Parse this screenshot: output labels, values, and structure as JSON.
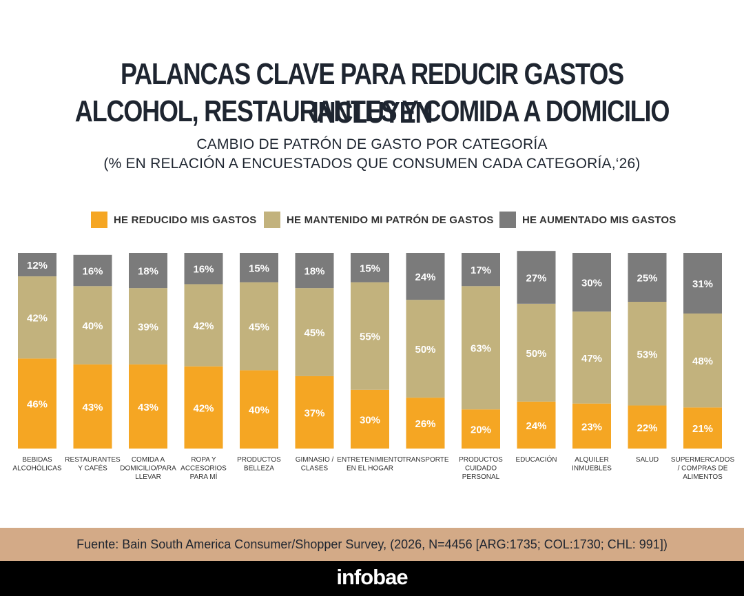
{
  "header": {
    "title_line1": "PALANCAS CLAVE PARA REDUCIR GASTOS INCLUYEN",
    "title_line2": "ALCOHOL, RESTAURANTES Y COMIDA A DOMICILIO",
    "subtitle_line1": "CAMBIO DE PATRÓN DE GASTO POR CATEGORÍA",
    "subtitle_line2": "(% EN RELACIÓN A ENCUESTADOS QUE CONSUMEN CADA CATEGORÍA,‘26)"
  },
  "colors": {
    "reducido": "#f5a623",
    "mantenido": "#c2b27d",
    "aumentado": "#7b7b7b",
    "label_text": "#ffffff",
    "footer_band": "#d3aa87",
    "brand_band": "#000000"
  },
  "chart_data": {
    "type": "bar",
    "stacked": true,
    "categories": [
      [
        "BEBIDAS",
        "ALCOHÓLICAS"
      ],
      [
        "RESTAURANTES",
        "Y CAFÉS"
      ],
      [
        "COMIDA A",
        "DOMICILIO/PARA",
        "LLEVAR"
      ],
      [
        "ROPA Y",
        "ACCESORIOS",
        "PARA MÍ"
      ],
      [
        "PRODUCTOS",
        "BELLEZA"
      ],
      [
        "GIMNASIO /",
        "CLASES"
      ],
      [
        "ENTRETENIMIENTO",
        "EN EL HOGAR"
      ],
      [
        "TRANSPORTE"
      ],
      [
        "PRODUCTOS",
        "CUIDADO",
        "PERSONAL"
      ],
      [
        "EDUCACIÓN"
      ],
      [
        "ALQUILER",
        "INMUEBLES"
      ],
      [
        "SALUD"
      ],
      [
        "SUPERMERCADOS",
        "/ COMPRAS DE",
        "ALIMENTOS"
      ]
    ],
    "series": [
      {
        "name": "HE REDUCIDO MIS GASTOS",
        "values": [
          46,
          43,
          43,
          42,
          40,
          37,
          30,
          26,
          20,
          24,
          23,
          22,
          21
        ]
      },
      {
        "name": "HE MANTENIDO MI PATRÓN DE GASTOS",
        "values": [
          42,
          40,
          39,
          42,
          45,
          45,
          55,
          50,
          63,
          50,
          47,
          53,
          48
        ]
      },
      {
        "name": "HE AUMENTADO MIS GASTOS",
        "values": [
          12,
          16,
          18,
          16,
          15,
          18,
          15,
          24,
          17,
          27,
          30,
          25,
          31
        ]
      }
    ],
    "value_suffix": "%",
    "legend_position": "top",
    "grid": false
  },
  "footer": {
    "source": "Fuente: Bain South America Consumer/Shopper Survey, (2026, N=4456 [ARG:1735; COL:1730; CHL: 991])",
    "brand": "infobae"
  }
}
